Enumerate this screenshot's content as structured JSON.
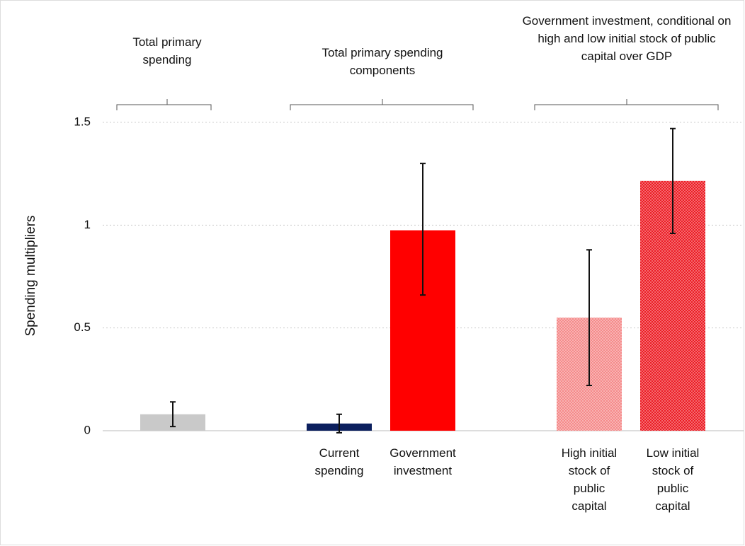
{
  "chart_data": {
    "type": "bar",
    "y_label": "Spending multipliers",
    "group_labels": [
      "Total primary spending",
      "Total primary spending components",
      "Government investment, conditional on high and low initial stock of public capital over GDP"
    ],
    "categories": [
      null,
      "Current spending",
      "Government investment",
      "High initial stock of public capital",
      "Low initial stock of public capital"
    ],
    "values": [
      0.08,
      0.035,
      0.975,
      0.55,
      1.215
    ],
    "error_low": [
      0.02,
      -0.01,
      0.66,
      0.22,
      0.96
    ],
    "error_high": [
      0.14,
      0.08,
      1.3,
      0.88,
      1.47
    ],
    "colors": [
      "#c9c9c9",
      "#0c1f5e",
      "#ff0000",
      "#f58a8a",
      "#ec1c24"
    ],
    "checkered": [
      false,
      false,
      false,
      true,
      true
    ],
    "ylim": [
      0,
      1.5
    ],
    "yticks": [
      0,
      0.5,
      1,
      1.5
    ],
    "grid": true
  }
}
